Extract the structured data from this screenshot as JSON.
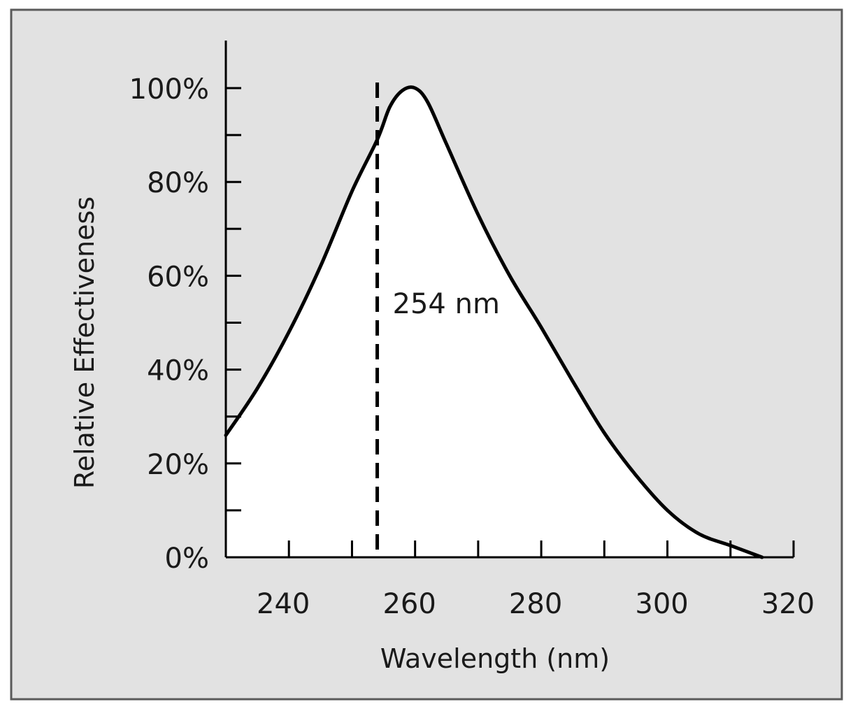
{
  "chart_data": {
    "type": "line",
    "title": "",
    "xlabel": "Wavelength (nm)",
    "ylabel": "Relative Effectiveness",
    "xlim": [
      230,
      320
    ],
    "ylim": [
      0,
      100
    ],
    "x_ticks": [
      240,
      260,
      280,
      300,
      320
    ],
    "y_ticks": [
      0,
      20,
      40,
      60,
      80,
      100
    ],
    "y_tick_labels": [
      "0%",
      "20%",
      "40%",
      "60%",
      "80%",
      "100%"
    ],
    "series": [
      {
        "x": [
          230,
          235,
          240,
          245,
          250,
          254,
          256,
          258,
          260,
          262,
          265,
          270,
          275,
          280,
          285,
          290,
          295,
          300,
          305,
          310,
          315
        ],
        "y": [
          26,
          36,
          48,
          62,
          78,
          89,
          96,
          99.5,
          100,
          97,
          88,
          73,
          60,
          49,
          37.5,
          26.5,
          17.5,
          10,
          5,
          2.5,
          0
        ]
      }
    ],
    "annotations": [
      {
        "x": 254,
        "label": "254 nm",
        "style": "dashed-vertical"
      }
    ],
    "grid": false,
    "background": "#e2e2e2",
    "area_fill": "#ffffff",
    "line_color": "#000000"
  }
}
